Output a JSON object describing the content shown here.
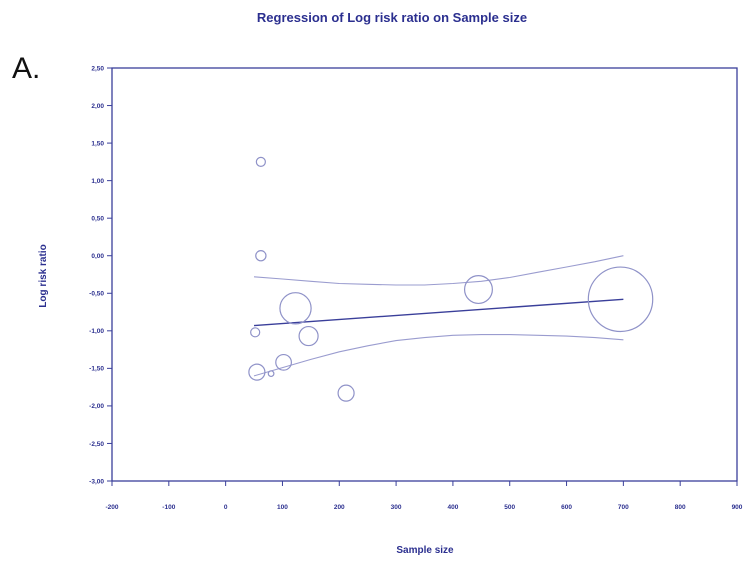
{
  "chart_data": {
    "type": "scatter",
    "panel_label": "A.",
    "title": "Regression of Log risk ratio on Sample size",
    "xlabel": "Sample size",
    "ylabel": "Log risk ratio",
    "xlim": [
      -200,
      900
    ],
    "ylim": [
      -3.0,
      2.5
    ],
    "x_ticks": [
      -200,
      -100,
      0,
      100,
      200,
      300,
      400,
      500,
      600,
      700,
      800,
      900
    ],
    "x_tick_labels": [
      "-200",
      "-100",
      "0",
      "100",
      "200",
      "300",
      "400",
      "500",
      "600",
      "700",
      "800",
      "900"
    ],
    "y_ticks": [
      2.5,
      2.0,
      1.5,
      1.0,
      0.5,
      0.0,
      -0.5,
      -1.0,
      -1.5,
      -2.0,
      -2.5,
      -3.0
    ],
    "y_tick_labels": [
      "2,50",
      "2,00",
      "1,50",
      "1,00",
      "0,50",
      "0,00",
      "-0,50",
      "-1,00",
      "-1,50",
      "-2,00",
      "-2,50",
      "-3,00"
    ],
    "grid": false,
    "colors": {
      "axis": "#3a3f9a",
      "points": "#8f92c8",
      "regression": "#3a3f9a",
      "ci": "#9a9ccf",
      "text": "#2b2f8f"
    },
    "points": [
      {
        "x": 62,
        "y": 1.25,
        "weight": 0.08
      },
      {
        "x": 62,
        "y": 0.0,
        "weight": 0.1
      },
      {
        "x": 52,
        "y": -1.02,
        "weight": 0.08
      },
      {
        "x": 55,
        "y": -1.55,
        "weight": 0.25
      },
      {
        "x": 80,
        "y": -1.57,
        "weight": 0.03
      },
      {
        "x": 102,
        "y": -1.42,
        "weight": 0.24
      },
      {
        "x": 123,
        "y": -0.7,
        "weight": 0.95
      },
      {
        "x": 146,
        "y": -1.07,
        "weight": 0.35
      },
      {
        "x": 212,
        "y": -1.83,
        "weight": 0.25
      },
      {
        "x": 445,
        "y": -0.45,
        "weight": 0.75
      },
      {
        "x": 695,
        "y": -0.58,
        "weight": 4.05
      }
    ],
    "regression_line": {
      "x": [
        50,
        700
      ],
      "y": [
        -0.93,
        -0.58
      ]
    },
    "ci_upper": {
      "x": [
        50,
        100,
        150,
        200,
        250,
        300,
        350,
        400,
        450,
        500,
        550,
        600,
        650,
        700
      ],
      "y": [
        -0.28,
        -0.31,
        -0.34,
        -0.37,
        -0.38,
        -0.39,
        -0.39,
        -0.37,
        -0.34,
        -0.29,
        -0.22,
        -0.15,
        -0.08,
        0.0
      ]
    },
    "ci_lower": {
      "x": [
        50,
        100,
        150,
        200,
        250,
        300,
        350,
        400,
        450,
        500,
        550,
        600,
        650,
        700
      ],
      "y": [
        -1.6,
        -1.49,
        -1.38,
        -1.28,
        -1.2,
        -1.13,
        -1.09,
        -1.06,
        -1.05,
        -1.05,
        -1.06,
        -1.07,
        -1.09,
        -1.12
      ]
    }
  }
}
